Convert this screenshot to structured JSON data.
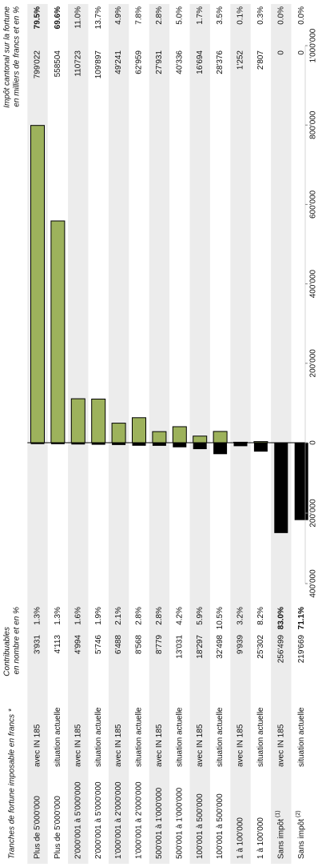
{
  "chart_data": {
    "type": "butterfly",
    "header_categories": "Tranches de fortune imposable en francs *",
    "categories": [
      "Plus de 5'000'000",
      "Plus de 5'000'000",
      "2'000'001 à 5'000'000",
      "2'000'001 à 5'000'000",
      "1'000'001 à 2'000'000",
      "1'000'001 à 2'000'000",
      "500'001 à 1'000'000",
      "500'001 à 1'000'000",
      "100'001 à 500'000",
      "100'001 à 500'000",
      "1 à 100'000",
      "1 à 100'000",
      "Sans impôt",
      "Sans impôt"
    ],
    "notes": [
      null,
      null,
      null,
      null,
      null,
      null,
      null,
      null,
      null,
      null,
      null,
      null,
      "(1)",
      "(2)"
    ],
    "variants": [
      "avec IN 185",
      "situation actuelle",
      "avec IN 185",
      "situation actuelle",
      "avec IN 185",
      "situation actuelle",
      "avec IN 185",
      "situation actuelle",
      "avec IN 185",
      "situation actuelle",
      "avec IN 185",
      "situation actuelle",
      "avec IN 185",
      "situation actuelle"
    ],
    "band_color": "#ececec",
    "series": [
      {
        "name": "Contribuables",
        "subtitle": "en nombre et en %",
        "color": "#000000",
        "values": [
          3931,
          4113,
          4994,
          5746,
          6488,
          8568,
          8779,
          13031,
          18297,
          32498,
          9939,
          25302,
          256499,
          219669
        ],
        "value_labels": [
          "3'931",
          "4'113",
          "4'994",
          "5'746",
          "6'488",
          "8'568",
          "8'779",
          "13'031",
          "18'297",
          "32'498",
          "9'939",
          "25'302",
          "256'499",
          "219'669"
        ],
        "shares": [
          1.3,
          1.3,
          1.6,
          1.9,
          2.1,
          2.8,
          2.8,
          4.2,
          5.9,
          10.5,
          3.2,
          8.2,
          83.0,
          71.1
        ],
        "share_labels": [
          "1.3%",
          "1.3%",
          "1.6%",
          "1.9%",
          "2.1%",
          "2.8%",
          "2.8%",
          "4.2%",
          "5.9%",
          "10.5%",
          "3.2%",
          "8.2%",
          "83.0%",
          "71.1%"
        ],
        "share_colors": [
          "#111111",
          "#111111",
          "#111111",
          "#111111",
          "#111111",
          "#111111",
          "#111111",
          "#111111",
          "#111111",
          "#111111",
          "#111111",
          "#111111",
          "#e8231f",
          "#e8231f"
        ],
        "xlim": [
          0,
          400000
        ],
        "xticks": [
          {
            "value": 200000,
            "label": "200'000"
          },
          {
            "value": 400000,
            "label": "400'000"
          }
        ]
      },
      {
        "name": "Impôt cantonal sur la fortune",
        "subtitle": "en milliers de francs et en %",
        "color": "#9db25c",
        "values": [
          799022,
          558504,
          110723,
          109897,
          49241,
          62959,
          27931,
          40336,
          16694,
          28376,
          1252,
          2807,
          0,
          0
        ],
        "value_labels": [
          "799'022",
          "558504",
          "110723",
          "109'897",
          "49'241",
          "62'959",
          "27'931",
          "40'336",
          "16'694",
          "28'376",
          "1'252",
          "2'807",
          "0",
          "0"
        ],
        "shares": [
          79.5,
          69.6,
          11.0,
          13.7,
          4.9,
          7.8,
          2.8,
          5.0,
          1.7,
          3.5,
          0.1,
          0.3,
          0.0,
          0.0
        ],
        "share_labels": [
          "79.5%",
          "69.6%",
          "11.0%",
          "13.7%",
          "4.9%",
          "7.8%",
          "2.8%",
          "5.0%",
          "1.7%",
          "3.5%",
          "0.1%",
          "0.3%",
          "0.0%",
          "0.0%"
        ],
        "share_colors": [
          "#e8231f",
          "#e8231f",
          "#111111",
          "#111111",
          "#111111",
          "#111111",
          "#111111",
          "#111111",
          "#111111",
          "#111111",
          "#111111",
          "#111111",
          "#111111",
          "#111111"
        ],
        "xlim": [
          0,
          1000000
        ],
        "xticks": [
          0,
          {
            "value": 200000,
            "label": "200'000"
          },
          {
            "value": 400000,
            "label": "400'000"
          },
          {
            "value": 600000,
            "label": "600'000"
          },
          {
            "value": 800000,
            "label": "800'000"
          },
          {
            "value": 1000000,
            "label": "1'000'000"
          }
        ]
      }
    ]
  }
}
